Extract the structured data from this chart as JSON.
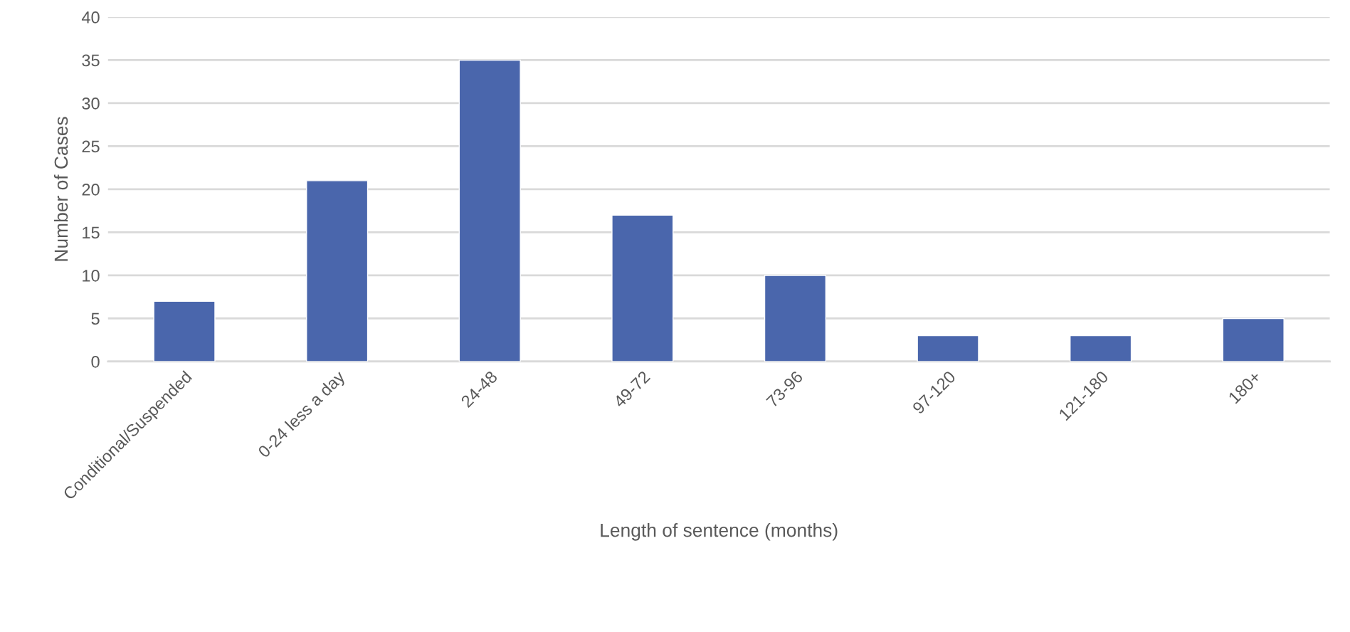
{
  "chart_data": {
    "type": "bar",
    "xlabel": "Length of sentence (months)",
    "ylabel": "Number of Cases",
    "categories": [
      "Conditional/Suspended",
      "0-24 less a day",
      "24-48",
      "49-72",
      "73-96",
      "97-120",
      "121-180",
      "180+"
    ],
    "values": [
      7,
      21,
      35,
      17,
      10,
      3,
      3,
      5
    ],
    "color": "#4a66ac",
    "ylim": [
      0,
      40
    ],
    "yticks": [
      0,
      5,
      10,
      15,
      20,
      25,
      30,
      35,
      40
    ],
    "grid": "y",
    "legend": false
  }
}
